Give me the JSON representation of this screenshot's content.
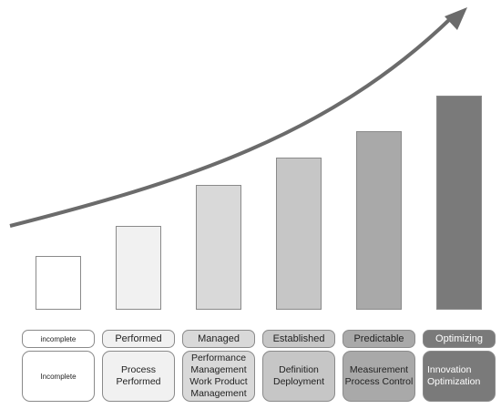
{
  "colors": {
    "arrow": "#6b6b6b",
    "border": "#8a8a8a",
    "levels": [
      "#ffffff",
      "#f1f1f1",
      "#d9d9d9",
      "#c6c6c6",
      "#a9a9a9",
      "#7a7a7a"
    ],
    "level_text": [
      "#222222",
      "#222222",
      "#222222",
      "#222222",
      "#222222",
      "#ffffff"
    ]
  },
  "levels": [
    {
      "title": "incomplete",
      "details": [
        "Incomplete"
      ],
      "rank": 1
    },
    {
      "title": "Performed",
      "details": [
        "Process",
        "Performed"
      ],
      "rank": 2
    },
    {
      "title": "Managed",
      "details": [
        "Performance",
        "Management",
        "Work Product",
        "Management"
      ],
      "rank": 3
    },
    {
      "title": "Established",
      "details": [
        "Definition",
        "Deployment"
      ],
      "rank": 4
    },
    {
      "title": "Predictable",
      "details": [
        "Measurement",
        "Process Control"
      ],
      "rank": 5
    },
    {
      "title": "Optimizing",
      "details": [
        "Innovation",
        "Optimization"
      ],
      "rank": 6
    }
  ]
}
